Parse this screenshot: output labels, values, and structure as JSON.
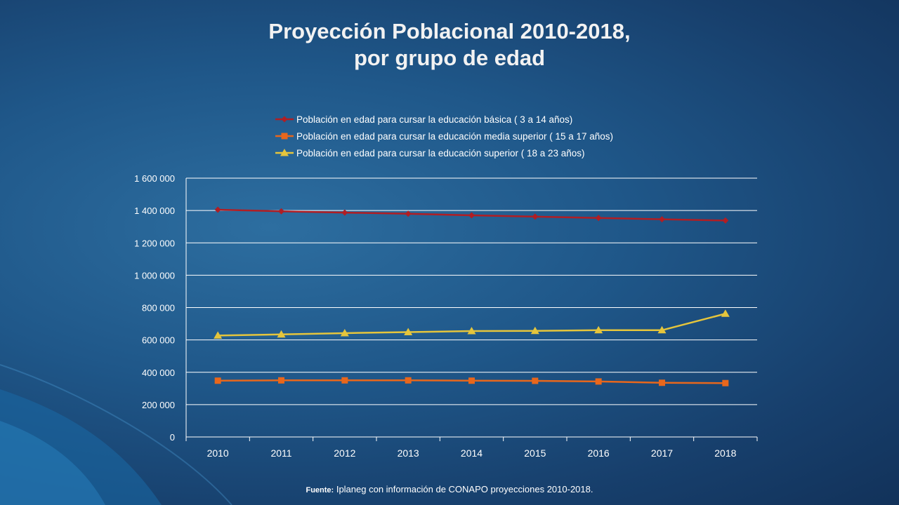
{
  "slide": {
    "title_line1": "Proyección Poblacional 2010-2018,",
    "title_line2": "por grupo de edad",
    "source_label": "Fuente:",
    "source_text": " Iplaneg con información de CONAPO proyecciones 2010-2018."
  },
  "colors": {
    "basica": "#b01e24",
    "media": "#e8671c",
    "superior": "#e5c53c",
    "grid": "#ffffff",
    "text": "#ffffff"
  },
  "chart_data": {
    "type": "line",
    "categories": [
      "2010",
      "2011",
      "2012",
      "2013",
      "2014",
      "2015",
      "2016",
      "2017",
      "2018"
    ],
    "ylim": [
      0,
      1600000
    ],
    "yticks": [
      0,
      200000,
      400000,
      600000,
      800000,
      1000000,
      1200000,
      1400000,
      1600000
    ],
    "ytick_labels": [
      "0",
      "200 000",
      "400 000",
      "600 000",
      "800 000",
      "1 000 000",
      "1 200 000",
      "1 400 000",
      "1 600 000"
    ],
    "grid": true,
    "legend_position": "top",
    "series": [
      {
        "name": "Población en edad para cursar la educación básica  ( 3 a 14 años)",
        "marker": "diamond",
        "color_key": "basica",
        "values": [
          1405000,
          1395000,
          1387000,
          1380000,
          1370000,
          1362000,
          1354000,
          1346000,
          1338000
        ]
      },
      {
        "name": "Población en edad para cursar la educación media superior  ( 15 a 17 años)",
        "marker": "square",
        "color_key": "media",
        "values": [
          348000,
          350000,
          350000,
          350000,
          348000,
          347000,
          343000,
          335000,
          333000
        ]
      },
      {
        "name": "Población en edad para cursar la educación superior ( 18 a 23 años)",
        "marker": "triangle",
        "color_key": "superior",
        "values": [
          627000,
          634000,
          642000,
          648000,
          655000,
          656000,
          660000,
          660000,
          762000
        ]
      }
    ]
  }
}
